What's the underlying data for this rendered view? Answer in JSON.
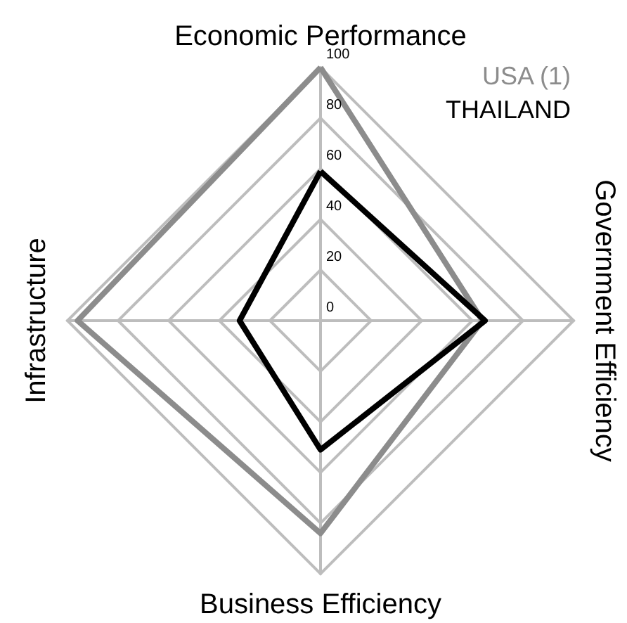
{
  "chart_data": {
    "type": "radar",
    "categories": [
      "Economic Performance",
      "Government Efficiency",
      "Business Efficiency",
      "Infrastructure"
    ],
    "series": [
      {
        "name": "USA (1)",
        "color": "#8c8c8c",
        "values": [
          100,
          64,
          84,
          96
        ]
      },
      {
        "name": "THAILAND",
        "color": "#000000",
        "values": [
          59,
          65,
          51,
          32
        ]
      }
    ],
    "ylim": [
      0,
      100
    ],
    "yticks": [
      0,
      20,
      40,
      60,
      80,
      100
    ],
    "legend": "top right"
  }
}
